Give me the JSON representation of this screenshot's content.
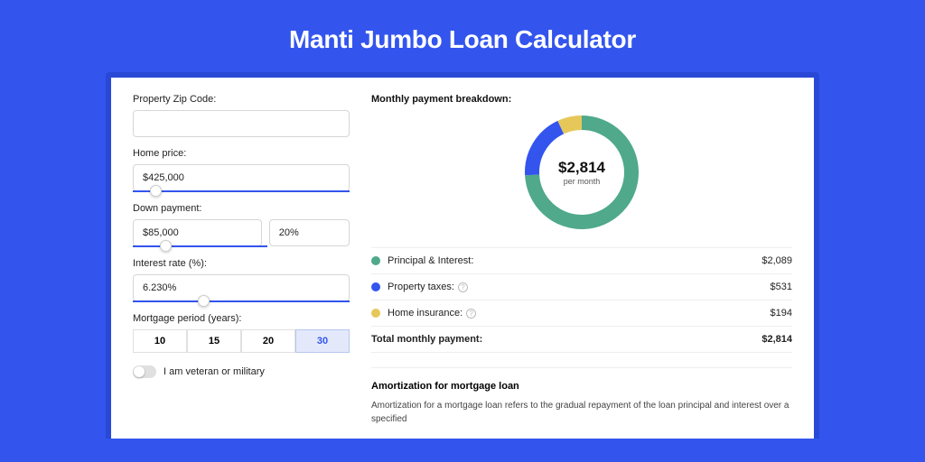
{
  "title": "Manti Jumbo Loan Calculator",
  "colors": {
    "page_bg": "#3355ee",
    "card_wrap_bg": "#2948d6",
    "card_bg": "#ffffff",
    "accent": "#3355ee"
  },
  "form": {
    "zip": {
      "label": "Property Zip Code:",
      "value": ""
    },
    "home_price": {
      "label": "Home price:",
      "value": "$425,000",
      "slider_pct": 8
    },
    "down_payment": {
      "label": "Down payment:",
      "amount": "$85,000",
      "pct": "20%",
      "slider_pct": 20
    },
    "interest": {
      "label": "Interest rate (%):",
      "value": "6.230%",
      "slider_pct": 30
    },
    "period": {
      "label": "Mortgage period (years):",
      "options": [
        "10",
        "15",
        "20",
        "30"
      ],
      "selected": 3
    },
    "veteran": {
      "label": "I am veteran or military",
      "checked": false
    }
  },
  "breakdown": {
    "title": "Monthly payment breakdown:",
    "center_value": "$2,814",
    "center_sub": "per month",
    "donut": {
      "slices": [
        {
          "label": "Principal & Interest",
          "value": 2089,
          "color": "#4fa98a",
          "start": 0,
          "end": 267
        },
        {
          "label": "Property taxes",
          "value": 531,
          "color": "#3355ee",
          "start": 267,
          "end": 335
        },
        {
          "label": "Home insurance",
          "value": 194,
          "color": "#e6c75a",
          "start": 335,
          "end": 360
        }
      ],
      "radius": 55,
      "stroke_width": 16,
      "bg": "#ffffff"
    },
    "rows": [
      {
        "dot": "#4fa98a",
        "label": "Principal & Interest:",
        "info": false,
        "value": "$2,089"
      },
      {
        "dot": "#3355ee",
        "label": "Property taxes:",
        "info": true,
        "value": "$531"
      },
      {
        "dot": "#e6c75a",
        "label": "Home insurance:",
        "info": true,
        "value": "$194"
      }
    ],
    "total": {
      "label": "Total monthly payment:",
      "value": "$2,814"
    }
  },
  "amortization": {
    "title": "Amortization for mortgage loan",
    "text": "Amortization for a mortgage loan refers to the gradual repayment of the loan principal and interest over a specified"
  }
}
